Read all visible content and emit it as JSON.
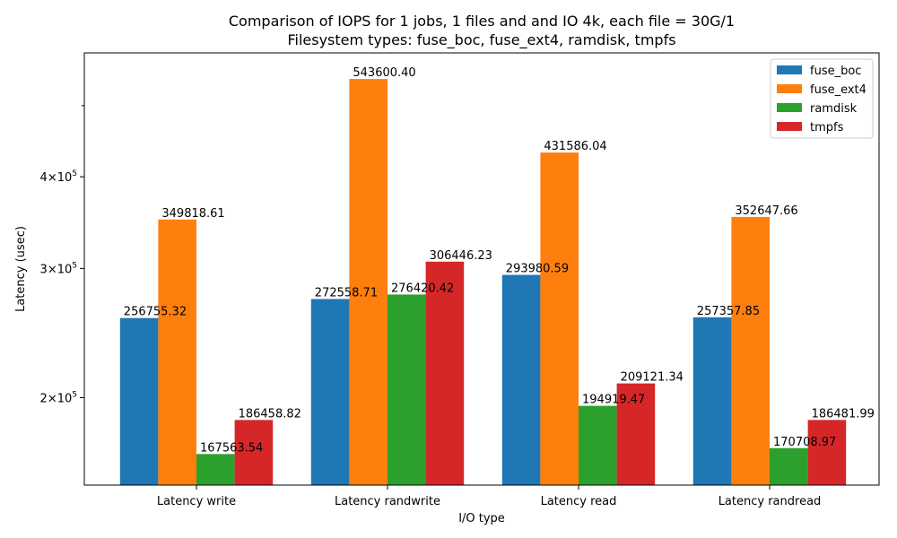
{
  "chart_data": {
    "type": "bar",
    "title_line1": "Comparison of IOPS for 1 jobs, 1 files and  and IO 4k, each file = 30G/1",
    "title_line2": "Filesystem types: fuse_boc, fuse_ext4, ramdisk, tmpfs",
    "xlabel": "I/O type",
    "ylabel": "Latency (usec)",
    "yscale": "log",
    "ylim": [
      152000,
      590000
    ],
    "categories": [
      "Latency write",
      "Latency randwrite",
      "Latency read",
      "Latency randread"
    ],
    "series": [
      {
        "name": "fuse_boc",
        "color": "#1f77b4",
        "values": [
          256755.32,
          272558.71,
          293980.59,
          257357.85
        ],
        "labels": [
          "256755.32",
          "272558.71",
          "293980.59",
          "257357.85"
        ]
      },
      {
        "name": "fuse_ext4",
        "color": "#ff7f0e",
        "values": [
          349818.61,
          543600.4,
          431586.04,
          352647.66
        ],
        "labels": [
          "349818.61",
          "543600.40",
          "431586.04",
          "352647.66"
        ]
      },
      {
        "name": "ramdisk",
        "color": "#2ca02c",
        "values": [
          167563.54,
          276420.42,
          194919.47,
          170708.97
        ],
        "labels": [
          "167563.54",
          "276420.42",
          "194919.47",
          "170708.97"
        ]
      },
      {
        "name": "tmpfs",
        "color": "#d62728",
        "values": [
          186458.82,
          306446.23,
          209121.34,
          186481.99
        ],
        "labels": [
          "186458.82",
          "306446.23",
          "209121.34",
          "186481.99"
        ]
      }
    ],
    "yticks": [
      {
        "value": 200000,
        "mantissa": "2",
        "base": "10",
        "exp": "5"
      },
      {
        "value": 300000,
        "mantissa": "3",
        "base": "10",
        "exp": "5"
      },
      {
        "value": 400000,
        "mantissa": "4",
        "base": "10",
        "exp": "5"
      }
    ],
    "minor_ticks": [
      500000
    ],
    "legend_position": "upper right",
    "grid": false
  }
}
